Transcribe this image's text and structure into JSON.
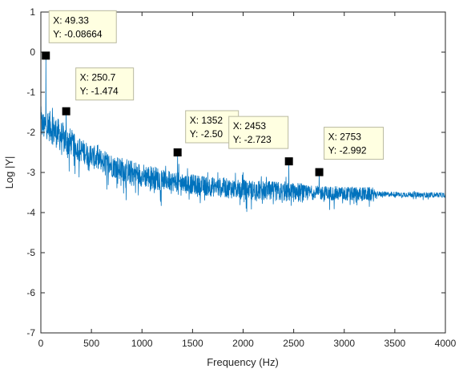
{
  "chart_data": {
    "type": "line",
    "title": "",
    "xlabel": "Frequency (Hz)",
    "ylabel": "Log |Y|",
    "xlim": [
      0,
      4000
    ],
    "ylim": [
      -7,
      1
    ],
    "xticks": [
      0,
      500,
      1000,
      1500,
      2000,
      2500,
      3000,
      3500,
      4000
    ],
    "yticks": [
      1,
      0,
      -1,
      -2,
      -3,
      -4,
      -5,
      -6,
      -7
    ],
    "grid": false,
    "box": true,
    "series": [
      {
        "color": "#0072bd",
        "description_points": [
          [
            0,
            -1.75
          ],
          [
            49.33,
            -0.08664
          ],
          [
            100,
            -1.9
          ],
          [
            250.7,
            -1.474
          ],
          [
            500,
            -2.8
          ],
          [
            1000,
            -3.05
          ],
          [
            1352,
            -2.5
          ],
          [
            1500,
            -3.2
          ],
          [
            2000,
            -3.35
          ],
          [
            2453,
            -2.723
          ],
          [
            2753,
            -2.992
          ],
          [
            3000,
            -3.45
          ],
          [
            3500,
            -3.55
          ],
          [
            4000,
            -3.62
          ]
        ]
      }
    ],
    "datatips": [
      {
        "x": 49.33,
        "y": -0.08664,
        "x_text": "X: 49.33",
        "y_text": "Y: -0.08664"
      },
      {
        "x": 250.7,
        "y": -1.474,
        "x_text": "X: 250.7",
        "y_text": "Y: -1.474"
      },
      {
        "x": 1352,
        "y": -2.5,
        "x_text": "X: 1352",
        "y_text": "Y: -2.50"
      },
      {
        "x": 2453,
        "y": -2.723,
        "x_text": "X: 2453",
        "y_text": "Y: -2.723"
      },
      {
        "x": 2753,
        "y": -2.992,
        "x_text": "X: 2753",
        "y_text": "Y: -2.992"
      }
    ]
  }
}
